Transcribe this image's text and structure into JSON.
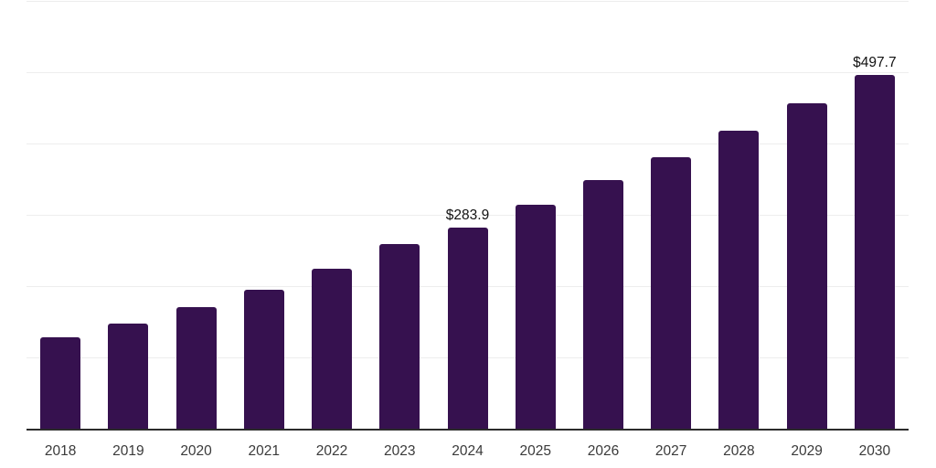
{
  "chart_data": {
    "type": "bar",
    "categories": [
      "2018",
      "2019",
      "2020",
      "2021",
      "2022",
      "2023",
      "2024",
      "2025",
      "2026",
      "2027",
      "2028",
      "2029",
      "2030"
    ],
    "values": [
      129.2,
      149.0,
      172.0,
      196.4,
      225.5,
      259.7,
      283.9,
      315.4,
      349.6,
      381.6,
      419.4,
      457.9,
      497.7
    ],
    "labeled_points": [
      {
        "category": "2024",
        "label": "$283.9"
      },
      {
        "category": "2030",
        "label": "$497.7"
      }
    ],
    "ylim": [
      0,
      600
    ],
    "grid_step": 100,
    "grid": true,
    "legend": false,
    "colors": {
      "bar": "#36114f",
      "gridline": "#ededed",
      "axis_line": "#2b2b2b",
      "tick_text": "#3a3a3a",
      "value_label_text": "#121212",
      "background": "#ffffff"
    }
  }
}
